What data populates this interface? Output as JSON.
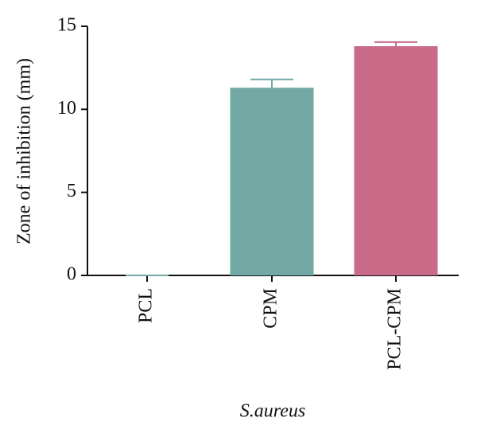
{
  "chart_data": {
    "type": "bar",
    "y_label": "Zone of inhibition (mm)",
    "x_label": "S.aureus",
    "categories": [
      "PCL",
      "CPM",
      "PCL-CPM"
    ],
    "values": [
      0,
      11.3,
      13.8
    ],
    "errors": [
      0,
      0.5,
      0.25
    ],
    "colors": [
      "#72a9a5",
      "#72a9a5",
      "#c96a89"
    ],
    "ylim": [
      0,
      15
    ],
    "yticks": [
      0,
      5,
      10,
      15
    ]
  }
}
